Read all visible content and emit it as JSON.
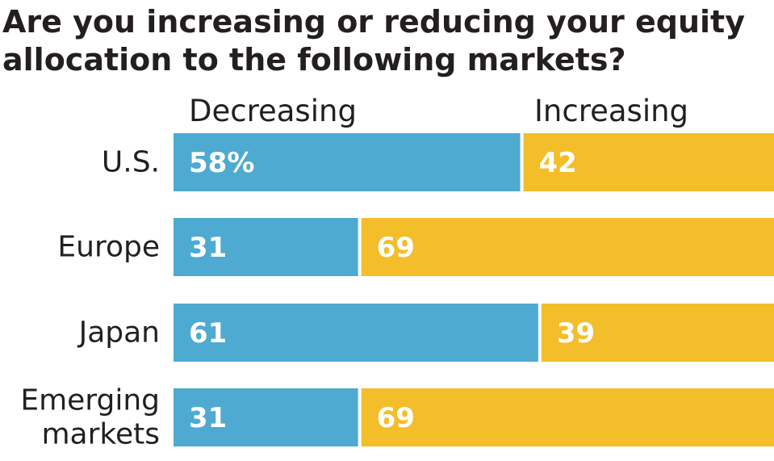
{
  "title_lines": [
    "Are you increasing or reducing your equity",
    "allocation to the following markets?"
  ],
  "chart_data": {
    "type": "bar",
    "orientation": "horizontal",
    "stacked": true,
    "title": "Are you increasing or reducing your equity allocation to the following markets?",
    "categories": [
      [
        "U.S."
      ],
      [
        "Europe"
      ],
      [
        "Japan"
      ],
      [
        "Emerging",
        "markets"
      ]
    ],
    "category_names": [
      "U.S.",
      "Europe",
      "Japan",
      "Emerging markets"
    ],
    "series": [
      {
        "name": "Decreasing",
        "values": [
          58,
          31,
          61,
          31
        ],
        "labels": [
          "58%",
          "31",
          "61",
          "31"
        ],
        "color": "#4eaad0"
      },
      {
        "name": "Increasing",
        "values": [
          42,
          69,
          39,
          69
        ],
        "labels": [
          "42",
          "69",
          "39",
          "69"
        ],
        "color": "#f3be2a"
      }
    ],
    "xlim": [
      0,
      100
    ],
    "unit": "%",
    "legend_position": "top",
    "grid": false
  }
}
